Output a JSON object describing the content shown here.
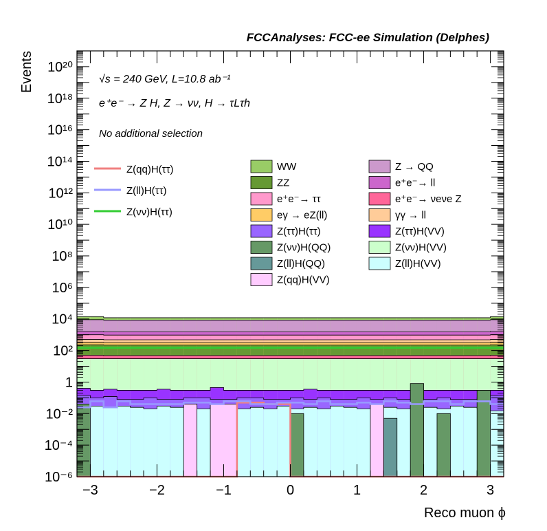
{
  "header": {
    "title": "FCCAnalyses: FCC-ee Simulation (Delphes)"
  },
  "annotations": {
    "energy": "√s = 240 GeV, L=10.8 ab⁻¹",
    "process": "e⁺e⁻ → Z H, Z → νν, H → τLτh",
    "selection": "No additional selection"
  },
  "axes": {
    "xlabel": "Reco muon ϕ",
    "ylabel": "Events",
    "x_ticks": [
      "−3",
      "−2",
      "−1",
      "0",
      "1",
      "2",
      "3"
    ],
    "y_ticks": [
      "10⁻⁶",
      "10⁻⁴",
      "10⁻²",
      "1",
      "10²",
      "10⁴",
      "10⁶",
      "10⁸",
      "10¹⁰",
      "10¹²",
      "10¹⁴",
      "10¹⁶",
      "10¹⁸",
      "10²⁰"
    ]
  },
  "legend": {
    "signals": [
      {
        "label": "Z(qq)H(ττ)",
        "color": "#f08080"
      },
      {
        "label": "Z(ll)H(ττ)",
        "color": "#9999ff"
      },
      {
        "label": "Z(νν)H(ττ)",
        "color": "#33cc33"
      }
    ],
    "backgrounds": [
      {
        "label": "WW",
        "color": "#99cc66"
      },
      {
        "label": "Z → QQ",
        "color": "#cc99cc"
      },
      {
        "label": "ZZ",
        "color": "#669933"
      },
      {
        "label": "e⁺e⁻→ ll",
        "color": "#cc66cc"
      },
      {
        "label": "e⁺e⁻→ ττ",
        "color": "#ff99cc"
      },
      {
        "label": "e⁺e⁻→ νeνe Z",
        "color": "#ff6699"
      },
      {
        "label": "eγ → eZ(ll)",
        "color": "#ffcc66"
      },
      {
        "label": "γγ → ll",
        "color": "#ffcc99"
      },
      {
        "label": "Z(ττ)H(ττ)",
        "color": "#9966ff"
      },
      {
        "label": "Z(ττ)H(VV)",
        "color": "#9933ff"
      },
      {
        "label": "Z(νν)H(QQ)",
        "color": "#669966"
      },
      {
        "label": "Z(νν)H(VV)",
        "color": "#ccffcc"
      },
      {
        "label": "Z(ll)H(QQ)",
        "color": "#669999"
      },
      {
        "label": "Z(ll)H(VV)",
        "color": "#ccffff"
      },
      {
        "label": "Z(qq)H(VV)",
        "color": "#ffccff"
      }
    ]
  },
  "chart_data": {
    "type": "area",
    "title": "FCCAnalyses: FCC-ee Simulation (Delphes)",
    "xlabel": "Reco muon ϕ",
    "ylabel": "Events",
    "xlim": [
      -3.2,
      3.2
    ],
    "ylim": [
      1e-06,
      1e+21
    ],
    "yscale": "log",
    "stacked": true,
    "bin_edges": [
      -3.2,
      -3.0,
      -2.8,
      -2.6,
      -2.4,
      -2.2,
      -2.0,
      -1.8,
      -1.6,
      -1.4,
      -1.2,
      -1.0,
      -0.8,
      -0.6,
      -0.4,
      -0.2,
      0.0,
      0.2,
      0.4,
      0.6,
      0.8,
      1.0,
      1.2,
      1.4,
      1.6,
      1.8,
      2.0,
      2.2,
      2.4,
      2.6,
      2.8,
      3.0,
      3.2
    ],
    "stack_levels": [
      {
        "name": "WW",
        "color": "#99cc66",
        "values": [
          14000,
          14000,
          12000,
          12000,
          12000,
          12000,
          12000,
          12000,
          12000,
          12000,
          12000,
          12000,
          12000,
          12000,
          12000,
          12000,
          12000,
          12000,
          12000,
          12000,
          12000,
          12000,
          12000,
          12000,
          12000,
          12000,
          12000,
          12000,
          12000,
          12000,
          12000,
          14000
        ]
      },
      {
        "name": "Z → QQ",
        "color": "#cc99cc",
        "values": [
          9000,
          9000,
          8500,
          8500,
          8500,
          8500,
          8500,
          8500,
          8500,
          8500,
          8500,
          8500,
          8500,
          8500,
          8500,
          8500,
          8500,
          8500,
          8500,
          8500,
          8500,
          8500,
          8500,
          8500,
          8500,
          8500,
          8500,
          8500,
          8500,
          8500,
          8500,
          9000
        ]
      },
      {
        "name": "e⁺e⁻→ ll",
        "color": "#cc66cc",
        "values": [
          1600,
          1600,
          1500,
          1500,
          1500,
          1500,
          1500,
          1500,
          1500,
          1500,
          1500,
          1500,
          1500,
          1500,
          1500,
          1500,
          1500,
          1500,
          1500,
          1500,
          1500,
          1500,
          1500,
          1500,
          1500,
          1500,
          1500,
          1500,
          1500,
          1500,
          1500,
          1600
        ]
      },
      {
        "name": "e⁺e⁻→ ττ",
        "color": "#ff99cc",
        "values": [
          1000,
          1000,
          950,
          950,
          950,
          950,
          950,
          950,
          950,
          950,
          950,
          950,
          950,
          950,
          950,
          950,
          950,
          950,
          950,
          950,
          950,
          950,
          950,
          950,
          950,
          950,
          950,
          950,
          950,
          950,
          950,
          1000
        ]
      },
      {
        "name": "γγ → ll",
        "color": "#ffcc99",
        "values": [
          500,
          500,
          480,
          480,
          480,
          480,
          480,
          480,
          480,
          480,
          480,
          480,
          480,
          480,
          480,
          480,
          480,
          480,
          480,
          480,
          480,
          480,
          480,
          480,
          480,
          480,
          480,
          480,
          480,
          480,
          480,
          500
        ]
      },
      {
        "name": "eγ → eZ(ll)",
        "color": "#ffcc66",
        "values": [
          330,
          330,
          320,
          320,
          320,
          320,
          320,
          320,
          320,
          320,
          320,
          320,
          320,
          320,
          320,
          320,
          320,
          320,
          320,
          320,
          320,
          320,
          320,
          320,
          320,
          320,
          320,
          320,
          320,
          320,
          320,
          330
        ]
      },
      {
        "name": "ZZ",
        "color": "#669933",
        "values": [
          230,
          230,
          220,
          220,
          220,
          220,
          220,
          220,
          220,
          220,
          220,
          220,
          220,
          220,
          220,
          220,
          220,
          220,
          220,
          220,
          220,
          220,
          220,
          220,
          220,
          220,
          220,
          220,
          220,
          220,
          220,
          230
        ]
      },
      {
        "name": "e⁺e⁻→ νeνe Z",
        "color": "#ff6699",
        "values": [
          50,
          50,
          48,
          48,
          48,
          48,
          48,
          48,
          48,
          48,
          48,
          48,
          48,
          48,
          48,
          48,
          48,
          48,
          48,
          48,
          48,
          48,
          48,
          48,
          48,
          48,
          48,
          48,
          48,
          48,
          48,
          50
        ]
      },
      {
        "name": "Z(νν)H(VV)",
        "color": "#ccffcc",
        "values": [
          30,
          30,
          30,
          30,
          30,
          30,
          30,
          30,
          30,
          30,
          30,
          30,
          30,
          30,
          30,
          30,
          30,
          30,
          30,
          30,
          30,
          30,
          30,
          30,
          30,
          30,
          30,
          30,
          30,
          30,
          30,
          30
        ]
      },
      {
        "name": "Z(ττ)H(VV)",
        "color": "#9933ff",
        "values": [
          0.4,
          0.3,
          0.35,
          0.3,
          0.3,
          0.3,
          0.35,
          0.3,
          0.3,
          0.3,
          0.45,
          0.3,
          0.3,
          0.3,
          0.3,
          0.3,
          0.3,
          0.35,
          0.3,
          0.3,
          0.3,
          0.3,
          0.3,
          0.3,
          0.3,
          0.3,
          0.3,
          0.3,
          0.3,
          0.3,
          0.3,
          0.3
        ]
      },
      {
        "name": "Z(ττ)H(ττ)",
        "color": "#9966ff",
        "values": [
          0.14,
          0.1,
          0.12,
          0.08,
          0.08,
          0.1,
          0.08,
          0.08,
          0.1,
          0.1,
          0.08,
          0.08,
          0.1,
          0.1,
          0.08,
          0.08,
          0.1,
          0.08,
          0.1,
          0.08,
          0.08,
          0.1,
          0.08,
          0.1,
          0.08,
          0.1,
          0.08,
          0.1,
          0.08,
          0.08,
          0.1,
          0.14
        ]
      },
      {
        "name": "Z(ll)H(VV)",
        "color": "#ccffff",
        "values": [
          0.02,
          0.03,
          0.025,
          0.03,
          0.025,
          0.02,
          0.03,
          0.025,
          0.03,
          0.02,
          0.025,
          0.02,
          0.02,
          0.025,
          0.02,
          0.03,
          0.02,
          0.025,
          0.02,
          0.03,
          0.025,
          0.02,
          0.03,
          0.025,
          0.02,
          0.03,
          0.025,
          0.02,
          0.03,
          0.025,
          0.02,
          0.015
        ]
      }
    ],
    "small_bars": [
      {
        "name": "Z(νν)H(QQ)",
        "color": "#669966",
        "bins": [
          [
            -3.2,
            -3.0,
            0.04
          ],
          [
            0.0,
            0.2,
            0.01
          ],
          [
            1.8,
            2.0,
            0.8
          ],
          [
            2.2,
            2.4,
            0.01
          ],
          [
            2.8,
            3.0,
            0.3
          ]
        ]
      },
      {
        "name": "Z(ll)H(QQ)",
        "color": "#669999",
        "bins": [
          [
            1.4,
            1.6,
            0.005
          ]
        ]
      },
      {
        "name": "Z(qq)H(VV)",
        "color": "#ffccff",
        "bins": [
          [
            -1.6,
            -1.4,
            0.04
          ],
          [
            -1.2,
            -0.8,
            0.04
          ],
          [
            1.2,
            1.4,
            0.04
          ]
        ]
      }
    ],
    "signal_lines": [
      {
        "name": "Z(qq)H(ττ)",
        "color": "#f08080",
        "steps": [
          [
            -3.2,
            -0.8,
            1e-06
          ],
          [
            -0.8,
            -0.6,
            0.05
          ],
          [
            -0.6,
            -0.4,
            0.05
          ],
          [
            -0.4,
            -0.2,
            0.04
          ],
          [
            -0.2,
            0.0,
            0.04
          ],
          [
            0.0,
            3.2,
            1e-06
          ]
        ]
      },
      {
        "name": "Z(ll)H(ττ)",
        "color": "#9999ff",
        "values": [
          0.025,
          0.06,
          0.025,
          0.06,
          0.04,
          0.04,
          0.04,
          0.04,
          0.05,
          0.05,
          0.04,
          0.06,
          0.06,
          0.04,
          0.04,
          0.05,
          0.05,
          0.04,
          0.06,
          0.04,
          0.04,
          0.05,
          0.04,
          0.06,
          0.05,
          0.04,
          0.06,
          0.06,
          0.04,
          0.06,
          0.06,
          0.04
        ]
      },
      {
        "name": "Z(νν)H(ττ)",
        "color": "#33cc33",
        "values": [
          150,
          150,
          150,
          150,
          150,
          150,
          150,
          150,
          150,
          150,
          150,
          150,
          150,
          150,
          150,
          150,
          150,
          150,
          150,
          150,
          150,
          150,
          150,
          150,
          150,
          150,
          150,
          150,
          150,
          150,
          150,
          150
        ]
      }
    ]
  }
}
